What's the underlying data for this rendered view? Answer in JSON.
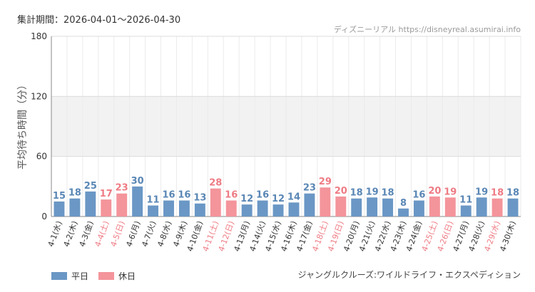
{
  "header": {
    "period_label": "集計期間：2026-04-01〜2026-04-30",
    "site_label": "ディズニーリアル https://disneyreal.asumirai.info"
  },
  "footer": {
    "subtitle": "ジャングルクルーズ:ワイルドライフ・エクスペディション"
  },
  "colors": {
    "weekday": "#6a97c5",
    "holiday": "#f4949b",
    "weekday_text": "#5a87b5",
    "holiday_text": "#ee7b84"
  },
  "chart_data": {
    "type": "bar",
    "title": "",
    "ylabel": "平均待ち時間（分）",
    "xlabel": "",
    "ylim": [
      0,
      180
    ],
    "yticks": [
      0,
      60,
      120,
      180
    ],
    "grid": true,
    "legend_position": "bottom-left",
    "categories": [
      "4-1(水)",
      "4-2(木)",
      "4-3(金)",
      "4-4(土)",
      "4-5(日)",
      "4-6(月)",
      "4-7(火)",
      "4-8(水)",
      "4-9(木)",
      "4-10(金)",
      "4-11(土)",
      "4-12(日)",
      "4-13(月)",
      "4-14(火)",
      "4-15(水)",
      "4-16(木)",
      "4-17(金)",
      "4-18(土)",
      "4-19(日)",
      "4-20(月)",
      "4-21(火)",
      "4-22(水)",
      "4-23(木)",
      "4-24(金)",
      "4-25(土)",
      "4-26(日)",
      "4-27(月)",
      "4-28(火)",
      "4-29(水)",
      "4-30(木)"
    ],
    "values": [
      15,
      18,
      25,
      17,
      23,
      30,
      11,
      16,
      16,
      13,
      28,
      16,
      12,
      16,
      12,
      14,
      23,
      29,
      20,
      18,
      19,
      18,
      8,
      16,
      20,
      19,
      11,
      19,
      18,
      18
    ],
    "day_type": [
      "平日",
      "平日",
      "平日",
      "休日",
      "休日",
      "平日",
      "平日",
      "平日",
      "平日",
      "平日",
      "休日",
      "休日",
      "平日",
      "平日",
      "平日",
      "平日",
      "平日",
      "休日",
      "休日",
      "平日",
      "平日",
      "平日",
      "平日",
      "平日",
      "休日",
      "休日",
      "平日",
      "平日",
      "休日",
      "平日"
    ],
    "series": [
      {
        "name": "平日"
      },
      {
        "name": "休日"
      }
    ]
  }
}
